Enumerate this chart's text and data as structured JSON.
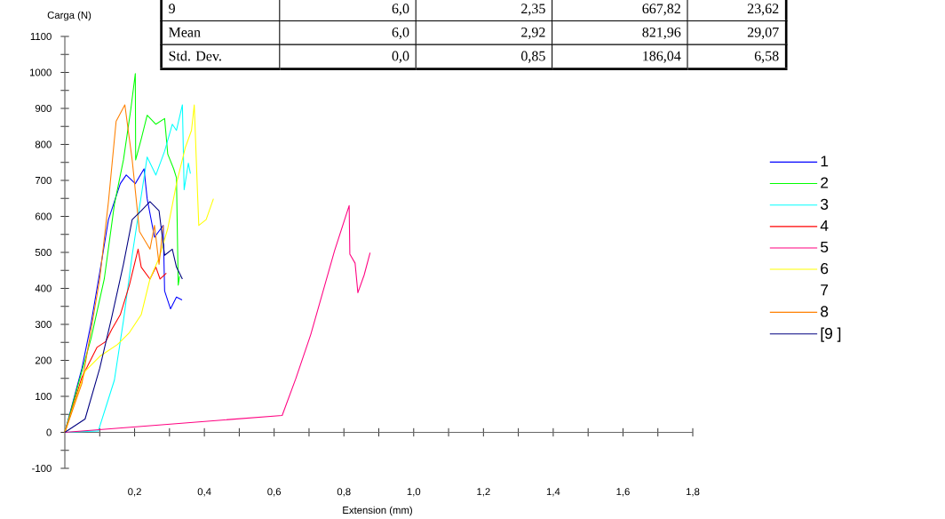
{
  "chart_data": {
    "type": "line",
    "xlabel": "Extension (mm)",
    "ylabel": "Carga (N)",
    "xlim": [
      0,
      1.8
    ],
    "ylim": [
      -100,
      1100
    ],
    "xticks": [
      {
        "value": 0.1,
        "label": null
      },
      {
        "value": 0.2,
        "label": "0,2"
      },
      {
        "value": 0.3,
        "label": null
      },
      {
        "value": 0.4,
        "label": "0,4"
      },
      {
        "value": 0.5,
        "label": null
      },
      {
        "value": 0.6,
        "label": "0,6"
      },
      {
        "value": 0.7,
        "label": null
      },
      {
        "value": 0.8,
        "label": "0,8"
      },
      {
        "value": 0.9,
        "label": null
      },
      {
        "value": 1.0,
        "label": "1,0"
      },
      {
        "value": 1.1,
        "label": null
      },
      {
        "value": 1.2,
        "label": "1,2"
      },
      {
        "value": 1.3,
        "label": null
      },
      {
        "value": 1.4,
        "label": "1,4"
      },
      {
        "value": 1.5,
        "label": null
      },
      {
        "value": 1.6,
        "label": "1,6"
      },
      {
        "value": 1.7,
        "label": null
      },
      {
        "value": 1.8,
        "label": "1,8"
      }
    ],
    "yticks": [
      -100,
      {
        "value": -50,
        "label": null
      },
      0,
      {
        "value": 50,
        "label": null
      },
      100,
      {
        "value": 150,
        "label": null
      },
      200,
      {
        "value": 250,
        "label": null
      },
      300,
      {
        "value": 350,
        "label": null
      },
      400,
      {
        "value": 450,
        "label": null
      },
      500,
      {
        "value": 550,
        "label": null
      },
      600,
      {
        "value": 650,
        "label": null
      },
      700,
      {
        "value": 750,
        "label": null
      },
      800,
      {
        "value": 850,
        "label": null
      },
      900,
      {
        "value": 950,
        "label": null
      },
      1000,
      {
        "value": 1050,
        "label": null
      },
      1100
    ],
    "legend": "right",
    "marker": "none",
    "line_style": "solid",
    "series": [
      {
        "name": "1",
        "color": "#0000ff",
        "x": [
          0,
          0.049,
          0.075,
          0.104,
          0.125,
          0.159,
          0.176,
          0.202,
          0.227,
          0.236,
          0.257,
          0.282,
          0.286,
          0.303,
          0.32,
          0.336
        ],
        "values": [
          0,
          178,
          302,
          467,
          591,
          691,
          715,
          691,
          732,
          649,
          542,
          575,
          393,
          343,
          376,
          368
        ]
      },
      {
        "name": "2",
        "color": "#00ff00",
        "x": [
          0,
          0.075,
          0.113,
          0.142,
          0.168,
          0.189,
          0.202,
          0.203,
          0.219,
          0.236,
          0.261,
          0.286,
          0.295,
          0.312,
          0.32,
          0.325,
          0.329
        ],
        "values": [
          0,
          260,
          426,
          633,
          757,
          897,
          997,
          757,
          815,
          881,
          856,
          872,
          773,
          732,
          707,
          409,
          434
        ]
      },
      {
        "name": "3",
        "color": "#00ffff",
        "x": [
          0,
          0.096,
          0.142,
          0.168,
          0.193,
          0.21,
          0.236,
          0.261,
          0.286,
          0.308,
          0.32,
          0.337,
          0.342,
          0.354,
          0.36
        ],
        "values": [
          0,
          4,
          145,
          310,
          492,
          600,
          765,
          715,
          781,
          856,
          839,
          910,
          674,
          748,
          719
        ]
      },
      {
        "name": "4",
        "color": "#ff0000",
        "x": [
          0,
          0.049,
          0.092,
          0.117,
          0.134,
          0.159,
          0.185,
          0.21,
          0.219,
          0.244,
          0.261,
          0.273,
          0.291
        ],
        "values": [
          0,
          153,
          236,
          252,
          285,
          327,
          409,
          509,
          459,
          426,
          459,
          426,
          442
        ]
      },
      {
        "name": "5",
        "color": "#ff0080",
        "x": [
          0,
          0.623,
          0.662,
          0.705,
          0.773,
          0.815,
          0.817,
          0.832,
          0.84,
          0.858,
          0.875
        ],
        "values": [
          0,
          47,
          149,
          272,
          504,
          630,
          495,
          470,
          388,
          437,
          499
        ]
      },
      {
        "name": "6",
        "color": "#ffff00",
        "x": [
          0,
          0.058,
          0.1,
          0.151,
          0.185,
          0.219,
          0.244,
          0.27,
          0.295,
          0.32,
          0.345,
          0.363,
          0.371,
          0.38,
          0.384,
          0.405,
          0.426
        ],
        "values": [
          0,
          170,
          211,
          244,
          277,
          327,
          426,
          484,
          566,
          691,
          790,
          839,
          910,
          674,
          575,
          591,
          649
        ]
      },
      {
        "name": "7"
      },
      {
        "name": "8",
        "color": "#ff8000",
        "x": [
          0,
          0.049,
          0.1,
          0.125,
          0.147,
          0.172,
          0.193,
          0.214,
          0.244,
          0.257,
          0.27,
          0.282
        ],
        "values": [
          0,
          136,
          426,
          641,
          864,
          910,
          757,
          558,
          509,
          575,
          467,
          575
        ]
      },
      {
        "name": "[9 ]",
        "color": "#000080",
        "x": [
          0,
          0.058,
          0.1,
          0.134,
          0.168,
          0.193,
          0.219,
          0.244,
          0.27,
          0.286,
          0.308,
          0.32,
          0.337
        ],
        "values": [
          0,
          37,
          178,
          318,
          467,
          591,
          616,
          641,
          616,
          492,
          509,
          459,
          426
        ]
      }
    ],
    "annotations": [
      "9",
      "6,0",
      "2,35",
      "667,82",
      "23,62",
      "Mean",
      "6,0",
      "2,92",
      "821,96",
      "29,07",
      "Std. Dev.",
      "0,0",
      "0,85",
      "186,04",
      "6,58"
    ]
  }
}
